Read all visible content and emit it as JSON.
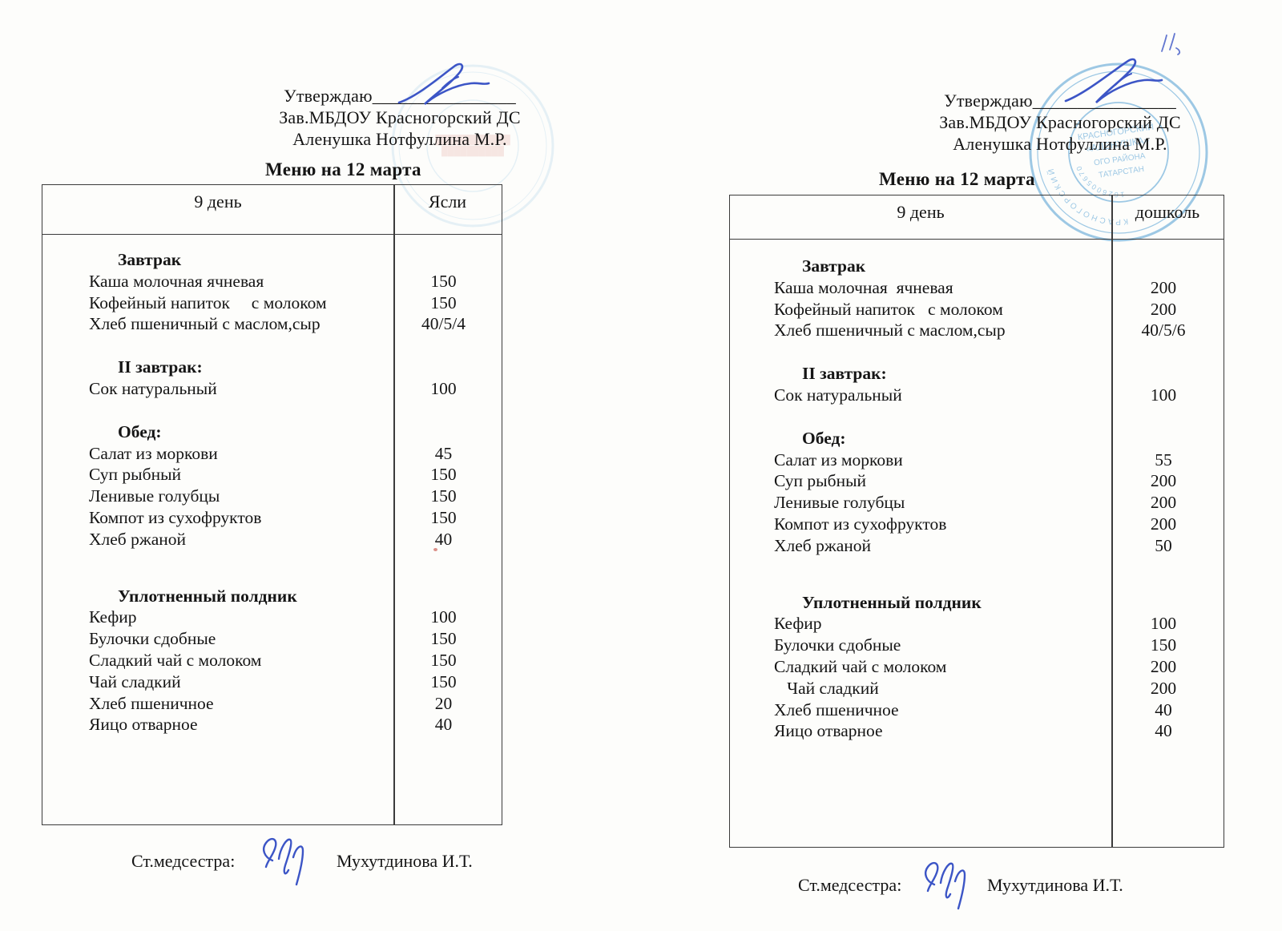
{
  "left": {
    "approval": {
      "line1": "Утверждаю________________",
      "line2": "Зав.МБДОУ Красногорский ДС",
      "line3": "Аленушка Нотфуллина М.Р."
    },
    "title": "Меню на 12 марта",
    "table": {
      "col1_header": "9 день",
      "col2_header": "Ясли",
      "groups": [
        {
          "title": "Завтрак",
          "items": [
            {
              "name": "Каша молочная ячневая",
              "qty": "150"
            },
            {
              "name": "Кофейный напиток     с молоком",
              "qty": "150"
            },
            {
              "name": "Хлеб пшеничный с маслом,сыр",
              "qty": "40/5/4"
            }
          ]
        },
        {
          "title": "II завтрак:",
          "items": [
            {
              "name": "Сок натуральный",
              "qty": "100"
            }
          ]
        },
        {
          "title": "Обед:",
          "items": [
            {
              "name": "Салат из моркови",
              "qty": "45"
            },
            {
              "name": "Суп рыбный",
              "qty": "150"
            },
            {
              "name": "Ленивые голубцы",
              "qty": "150"
            },
            {
              "name": "Компот из сухофруктов",
              "qty": "150"
            },
            {
              "name": "Хлеб ржаной",
              "qty": "40"
            }
          ]
        },
        {
          "title": "Уплотненный полдник",
          "items": [
            {
              "name": "Кефир",
              "qty": "100"
            },
            {
              "name": "Булочки сдобные",
              "qty": "150"
            },
            {
              "name": "Сладкий чай с молоком",
              "qty": "150"
            },
            {
              "name": "Чай сладкий",
              "qty": "150"
            },
            {
              "name": "Хлеб пшеничное",
              "qty": "20"
            },
            {
              "name": "Яицо отварное",
              "qty": "40"
            }
          ]
        }
      ]
    },
    "footer": {
      "label": "Ст.медсестра:",
      "name": "Мухутдинова И.Т."
    }
  },
  "right": {
    "approval": {
      "line1": "Утверждаю________________",
      "line2": "Зав.МБДОУ Красногорский ДС",
      "line3": "Аленушка Нотфуллина М.Р."
    },
    "title": "Меню на 12 марта",
    "table": {
      "col1_header": "9 день",
      "col2_header": "дошколь",
      "groups": [
        {
          "title": "Завтрак",
          "items": [
            {
              "name": "Каша молочная  ячневая",
              "qty": "200"
            },
            {
              "name": "Кофейный напиток   с молоком",
              "qty": "200"
            },
            {
              "name": "Хлеб пшеничный с маслом,сыр",
              "qty": "40/5/6"
            }
          ]
        },
        {
          "title": "II завтрак:",
          "items": [
            {
              "name": "Сок натуральный",
              "qty": "100"
            }
          ]
        },
        {
          "title": "Обед:",
          "items": [
            {
              "name": "Салат из моркови",
              "qty": "55"
            },
            {
              "name": "Суп рыбный",
              "qty": "200"
            },
            {
              "name": "Ленивые голубцы",
              "qty": "200"
            },
            {
              "name": "Компот из сухофруктов",
              "qty": "200"
            },
            {
              "name": "Хлеб ржаной",
              "qty": "50"
            }
          ]
        },
        {
          "title": "Уплотненный полдник",
          "items": [
            {
              "name": "Кефир",
              "qty": "100"
            },
            {
              "name": "Булочки сдобные",
              "qty": "150"
            },
            {
              "name": "Сладкий чай с молоком",
              "qty": "200"
            },
            {
              "name": "   Чай сладкий",
              "qty": "200"
            },
            {
              "name": "Хлеб пшеничное",
              "qty": "40"
            },
            {
              "name": "Яицо отварное",
              "qty": "40"
            }
          ]
        }
      ]
    },
    "footer": {
      "label": "Ст.медсестра:",
      "name": "Мухутдинова И.Т."
    }
  },
  "stamp": {
    "color": "#4f9dd3",
    "center_line1": "КРАСНОГОРСКИЙ",
    "center_line2": "«АЛЕНУШКА»",
    "center_line3": "ОГО РАЙОНА",
    "center_line4": "ТАТАРСТАН",
    "ring_number": "1626005670"
  },
  "ink_color": "#3c55c6"
}
